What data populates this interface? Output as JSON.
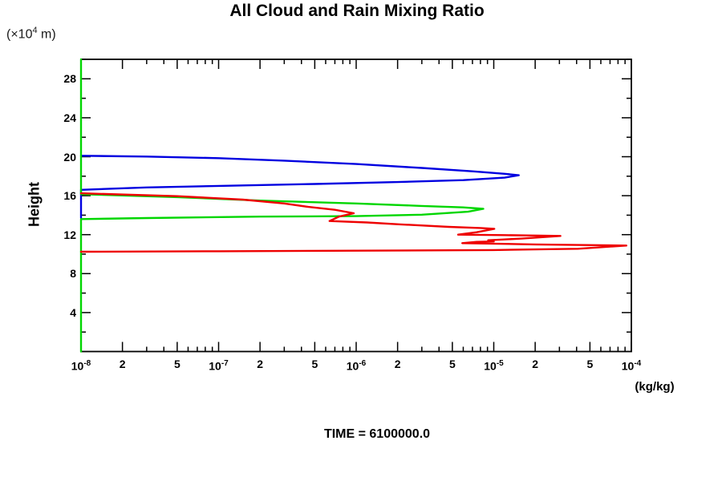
{
  "title": "All Cloud and Rain Mixing Ratio",
  "time_label": "TIME = 6100000.0",
  "y_axis": {
    "title": "Height",
    "unit_pre": "(×10",
    "unit_sup": "4",
    "unit_post": " m)"
  },
  "x_axis": {
    "unit": "(kg/kg)"
  },
  "colors": {
    "blue": "#0000e0",
    "green": "#00d600",
    "red": "#ee0000",
    "axis": "#000000"
  },
  "chart_data": {
    "type": "line",
    "title": "All Cloud and Rain Mixing Ratio",
    "xlabel": "(kg/kg)",
    "ylabel": "Height (×10^4 m)",
    "x_scale": "log",
    "xlim": [
      1e-08,
      0.0001
    ],
    "ylim": [
      0,
      30
    ],
    "grid": false,
    "legend": "none",
    "x_major_ticks": [
      {
        "v": 1e-08,
        "label": "10",
        "sup": "-8"
      },
      {
        "v": 2e-08,
        "label": "2"
      },
      {
        "v": 5e-08,
        "label": "5"
      },
      {
        "v": 1e-07,
        "label": "10",
        "sup": "-7"
      },
      {
        "v": 2e-07,
        "label": "2"
      },
      {
        "v": 5e-07,
        "label": "5"
      },
      {
        "v": 1e-06,
        "label": "10",
        "sup": "-6"
      },
      {
        "v": 2e-06,
        "label": "2"
      },
      {
        "v": 5e-06,
        "label": "5"
      },
      {
        "v": 1e-05,
        "label": "10",
        "sup": "-5"
      },
      {
        "v": 2e-05,
        "label": "2"
      },
      {
        "v": 5e-05,
        "label": "5"
      },
      {
        "v": 0.0001,
        "label": "10",
        "sup": "-4"
      }
    ],
    "x_minor_multipliers": [
      3,
      4,
      6,
      7,
      8,
      9
    ],
    "y_major_ticks": [
      4,
      8,
      12,
      16,
      20,
      24,
      28
    ],
    "y_minor_ticks": [
      2,
      6,
      10,
      14,
      18,
      22,
      26,
      30
    ],
    "series": [
      {
        "name": "blue_curve",
        "color_key": "blue",
        "points": [
          [
            1e-08,
            20.1
          ],
          [
            3e-08,
            20.02
          ],
          [
            1e-07,
            19.85
          ],
          [
            3e-07,
            19.6
          ],
          [
            1e-06,
            19.25
          ],
          [
            3e-06,
            18.85
          ],
          [
            7e-06,
            18.5
          ],
          [
            1.2e-05,
            18.25
          ],
          [
            1.52e-05,
            18.1
          ],
          [
            1.2e-05,
            17.85
          ],
          [
            6e-06,
            17.6
          ],
          [
            2e-06,
            17.4
          ],
          [
            5e-07,
            17.2
          ],
          [
            1e-07,
            17.0
          ],
          [
            3e-08,
            16.85
          ],
          [
            1e-08,
            16.6
          ],
          [
            1e-08,
            13.7
          ]
        ]
      },
      {
        "name": "green_curve",
        "color_key": "green",
        "points": [
          [
            1e-08,
            30.0
          ],
          [
            1e-08,
            16.15
          ],
          [
            5e-08,
            15.85
          ],
          [
            2e-07,
            15.5
          ],
          [
            1e-06,
            15.2
          ],
          [
            3e-06,
            14.95
          ],
          [
            6e-06,
            14.8
          ],
          [
            8.4e-06,
            14.65
          ],
          [
            6.5e-06,
            14.35
          ],
          [
            3e-06,
            14.05
          ],
          [
            1e-06,
            13.9
          ],
          [
            2e-07,
            13.85
          ],
          [
            3e-08,
            13.7
          ],
          [
            1e-08,
            13.6
          ],
          [
            1e-08,
            0.0
          ]
        ]
      },
      {
        "name": "red_curve",
        "color_key": "red",
        "points": [
          [
            1e-08,
            16.25
          ],
          [
            5e-08,
            15.95
          ],
          [
            1.5e-07,
            15.6
          ],
          [
            3e-07,
            15.2
          ],
          [
            4.5e-07,
            14.85
          ],
          [
            7e-07,
            14.55
          ],
          [
            9.6e-07,
            14.2
          ],
          [
            7.5e-07,
            13.85
          ],
          [
            6.4e-07,
            13.4
          ],
          [
            1.2e-06,
            13.25
          ],
          [
            2.1e-06,
            13.05
          ],
          [
            4.7e-06,
            12.8
          ],
          [
            8e-06,
            12.68
          ],
          [
            1.01e-05,
            12.6
          ],
          [
            7.5e-06,
            12.25
          ],
          [
            5.5e-06,
            12.0
          ],
          [
            1.2e-05,
            11.95
          ],
          [
            3.05e-05,
            11.87
          ],
          [
            1.6e-05,
            11.6
          ],
          [
            9.1e-06,
            11.42
          ],
          [
            1e-05,
            11.3
          ],
          [
            7.5e-06,
            11.26
          ],
          [
            5.9e-06,
            11.13
          ],
          [
            2e-05,
            11.0
          ],
          [
            9.2e-05,
            10.88
          ],
          [
            4.1e-05,
            10.55
          ],
          [
            1e-05,
            10.42
          ],
          [
            1e-06,
            10.35
          ],
          [
            1e-07,
            10.3
          ],
          [
            1e-08,
            10.25
          ]
        ]
      }
    ]
  }
}
